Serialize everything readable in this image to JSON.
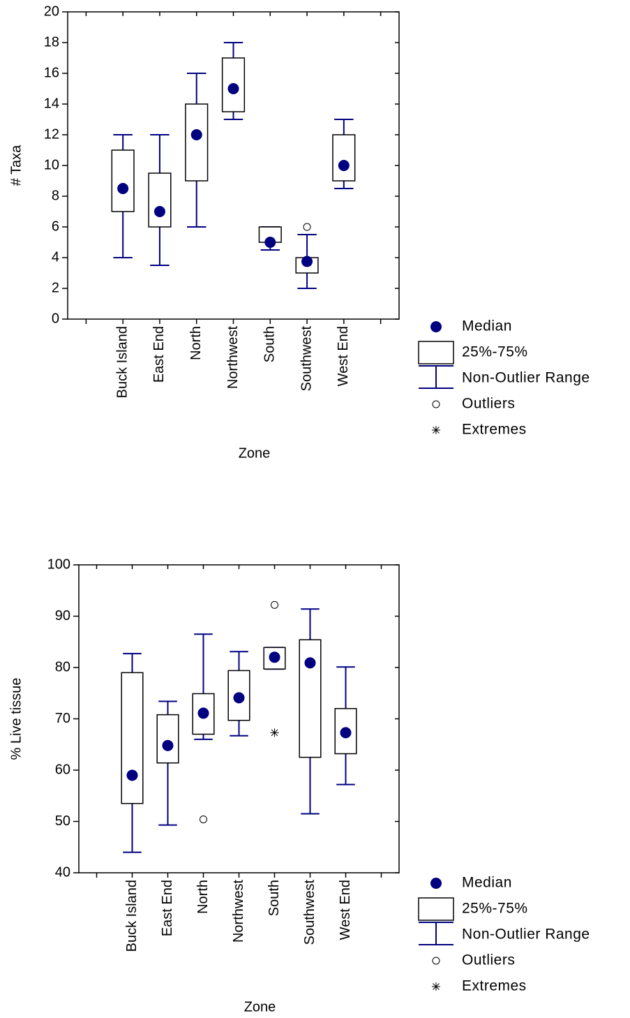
{
  "chart_data": [
    {
      "type": "box",
      "y_label": "# Taxa",
      "x_label": "Zone",
      "categories": [
        null,
        "Buck Island",
        "East End",
        "North",
        "Northwest",
        "South",
        "Southwest",
        "West End",
        null
      ],
      "min": [
        null,
        4,
        3.5,
        6,
        13,
        4.5,
        2,
        8.5,
        null
      ],
      "q1": [
        null,
        7,
        6,
        9,
        13.5,
        5,
        3,
        9,
        null
      ],
      "median": [
        null,
        8.5,
        7,
        12,
        15,
        5,
        3.75,
        10,
        null
      ],
      "q3": [
        null,
        11,
        9.5,
        14,
        17,
        6,
        4,
        12,
        null
      ],
      "max": [
        null,
        12,
        12,
        16,
        18,
        6,
        5.5,
        13,
        null
      ],
      "outliers": [
        null,
        [],
        [],
        [],
        [],
        [],
        [
          6
        ],
        [],
        null
      ],
      "extremes": [
        null,
        [],
        [],
        [],
        [],
        [],
        [],
        [],
        null
      ],
      "ylim": [
        0,
        20
      ],
      "yticks": [
        0,
        2,
        4,
        6,
        8,
        10,
        12,
        14,
        16,
        18,
        20
      ],
      "median_color": "#000080",
      "whisker_color": "#000080",
      "box_color": "#000000",
      "legend": [
        "Median",
        "25%-75%",
        "Non-Outlier Range",
        "Outliers",
        "Extremes"
      ],
      "legend_position": "right"
    },
    {
      "type": "box",
      "y_label": "% Live tissue",
      "x_label": "Zone",
      "categories": [
        null,
        "Buck Island",
        "East End",
        "North",
        "Northwest",
        "South",
        "Southwest",
        "West End",
        null
      ],
      "min": [
        null,
        44,
        49.3,
        66,
        66.7,
        79.7,
        51.5,
        57.2,
        null
      ],
      "q1": [
        null,
        53.5,
        61.4,
        67,
        69.7,
        79.7,
        62.5,
        63.2,
        null
      ],
      "median": [
        null,
        59,
        64.8,
        71.1,
        74.1,
        82,
        80.9,
        67.3,
        null
      ],
      "q3": [
        null,
        79,
        70.8,
        74.9,
        79.4,
        83.9,
        85.4,
        72,
        null
      ],
      "max": [
        null,
        82.7,
        73.4,
        86.5,
        83.1,
        83.9,
        91.4,
        80.1,
        null
      ],
      "outliers": [
        null,
        [],
        [],
        [
          50.4
        ],
        [],
        [
          92.2
        ],
        [],
        [],
        null
      ],
      "extremes": [
        null,
        [],
        [],
        [],
        [],
        [
          67.3
        ],
        [],
        [],
        null
      ],
      "ylim": [
        40,
        100
      ],
      "yticks": [
        40,
        50,
        60,
        70,
        80,
        90,
        100
      ],
      "median_color": "#000080",
      "whisker_color": "#000080",
      "box_color": "#000000",
      "legend": [
        "Median",
        "25%-75%",
        "Non-Outlier Range",
        "Outliers",
        "Extremes"
      ],
      "legend_position": "right"
    }
  ]
}
